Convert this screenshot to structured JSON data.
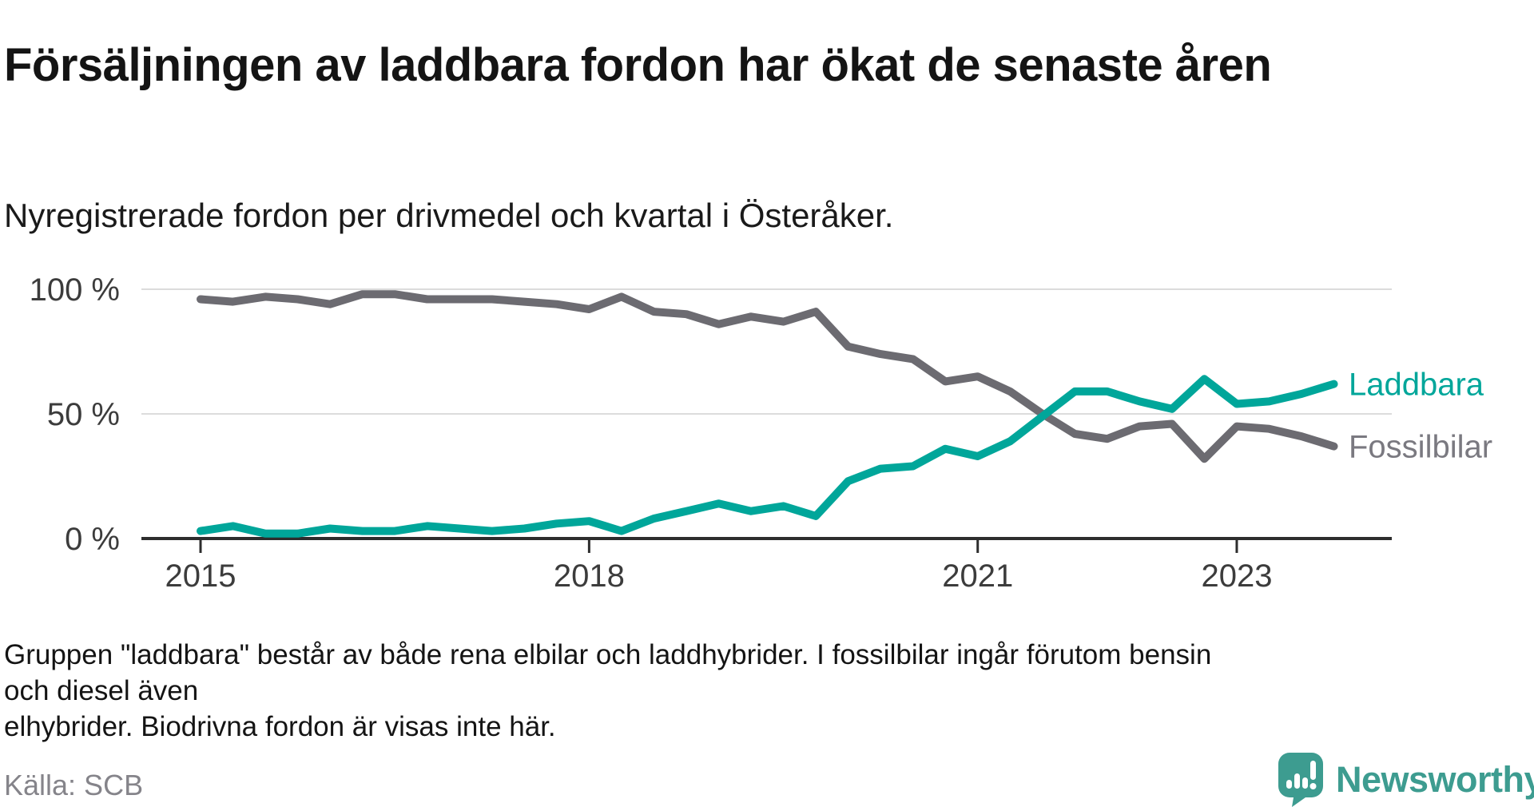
{
  "title": "Försäljningen av laddbara fordon har ökat de senaste åren",
  "subtitle": "Nyregistrerade fordon per drivmedel och kvartal i Österåker.",
  "footnote": {
    "line1": "Gruppen \"laddbara\" består av både rena elbilar och laddhybrider. I fossilbilar ingår förutom bensin och diesel även",
    "line2": "elhybrider. Biodrivna fordon är visas inte här."
  },
  "source": "Källa: SCB",
  "brand": {
    "name": "Newsworthy",
    "color": "#3d9c90",
    "icon": "newsworthy-speech-bubble-bar-chart-icon"
  },
  "chart_data": {
    "type": "line",
    "unit": "%",
    "x_start": "2015-Q1",
    "x_end": "2023-Q4",
    "x_frequency": "quarterly",
    "x_tick_years": [
      2015,
      2018,
      2021,
      2023
    ],
    "y_ticks": [
      {
        "value": 0,
        "label": "0 %"
      },
      {
        "value": 50,
        "label": "50 %"
      },
      {
        "value": 100,
        "label": "100 %"
      }
    ],
    "ylim": [
      0,
      100
    ],
    "grid": "horizontal-gridlines-at-50-and-100",
    "legend_position": "right-of-line-ends",
    "colors": {
      "gridline": "#dcdcdc",
      "axis": "#2d2d2d",
      "tick_text": "#3c3c3c"
    },
    "series": [
      {
        "name": "Fossilbilar",
        "color": "#6c6b71",
        "label_color": "#7a7980",
        "values": [
          96,
          95,
          97,
          96,
          94,
          98,
          98,
          96,
          96,
          96,
          95,
          94,
          92,
          97,
          91,
          90,
          86,
          89,
          87,
          91,
          77,
          74,
          72,
          63,
          65,
          59,
          50,
          42,
          40,
          45,
          46,
          32,
          45,
          44,
          41,
          37
        ]
      },
      {
        "name": "Laddbara",
        "color": "#00a69a",
        "label_color": "#00a69a",
        "values": [
          3,
          5,
          2,
          2,
          4,
          3,
          3,
          5,
          4,
          3,
          4,
          6,
          7,
          3,
          8,
          11,
          14,
          11,
          13,
          9,
          23,
          28,
          29,
          36,
          33,
          39,
          49,
          59,
          59,
          55,
          52,
          64,
          54,
          55,
          58,
          62
        ]
      }
    ]
  }
}
